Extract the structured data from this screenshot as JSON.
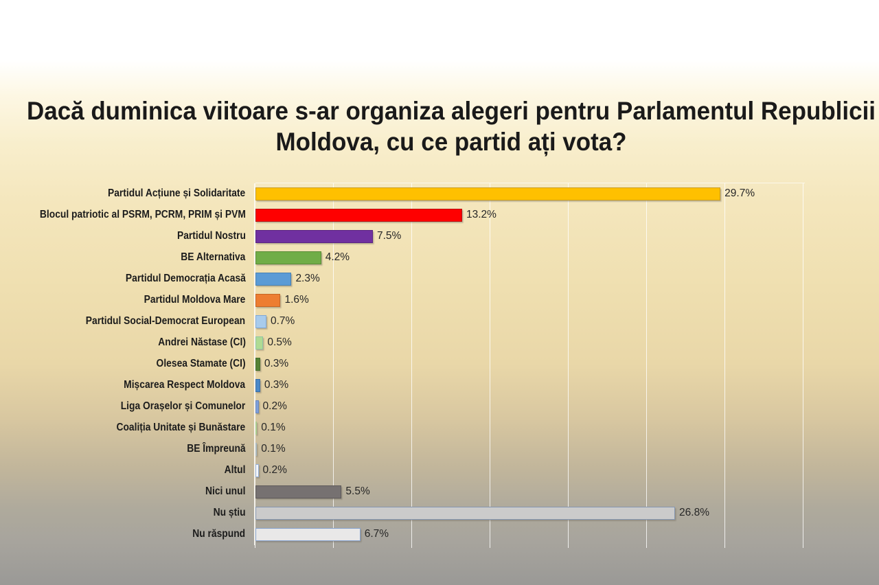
{
  "title": {
    "line1": "Dacă duminica viitoare s-ar organiza alegeri pentru Parlamentul Republicii",
    "line2": "Moldova, cu ce partid ați vota?",
    "full": "Dacă duminica viitoare s-ar organiza alegeri pentru Parlamentul Republicii Moldova, cu ce partid ați vota?"
  },
  "chart_data": {
    "type": "bar",
    "orientation": "horizontal",
    "title": "Dacă duminica viitoare s-ar organiza alegeri pentru Parlamentul Republicii Moldova, cu ce partid ați vota?",
    "xlabel": "",
    "ylabel": "",
    "xlim": [
      0,
      35
    ],
    "gridline_step_percent": 5,
    "grid": "vertical-white-gridlines",
    "legend": "none",
    "categories": [
      "Partidul Acțiune și Solidaritate",
      "Blocul patriotic al PSRM, PCRM, PRIM și PVM",
      "Partidul Nostru",
      "BE Alternativa",
      "Partidul Democrația Acasă",
      "Partidul Moldova Mare",
      "Partidul Social-Democrat European",
      "Andrei Năstase (CI)",
      "Olesea Stamate (CI)",
      "Mișcarea Respect Moldova",
      "Liga Orașelor și Comunelor",
      "Coaliția Unitate și Bunăstare",
      "BE Împreună",
      "Altul",
      "Nici unul",
      "Nu știu",
      "Nu răspund"
    ],
    "values": [
      29.7,
      13.2,
      7.5,
      4.2,
      2.3,
      1.6,
      0.7,
      0.5,
      0.3,
      0.3,
      0.2,
      0.1,
      0.1,
      0.2,
      5.5,
      26.8,
      6.7
    ],
    "value_labels": [
      "29.7%",
      "13.2%",
      "7.5%",
      "4.2%",
      "2.3%",
      "1.6%",
      "0.7%",
      "0.5%",
      "0.3%",
      "0.3%",
      "0.2%",
      "0.1%",
      "0.1%",
      "0.2%",
      "5.5%",
      "26.8%",
      "6.7%"
    ],
    "bar_colors": [
      {
        "fill": "#FFC000",
        "border": "#C89B1B"
      },
      {
        "fill": "#FE0000",
        "border": "#B81414"
      },
      {
        "fill": "#7030A0",
        "border": "#5A2482"
      },
      {
        "fill": "#70AD47",
        "border": "#5A8C37"
      },
      {
        "fill": "#5B9BD5",
        "border": "#4781B4"
      },
      {
        "fill": "#ED7D31",
        "border": "#C56523"
      },
      {
        "fill": "#A8CBEC",
        "border": "#7FA8D6"
      },
      {
        "fill": "#AFDB93",
        "border": "#8FC5A5"
      },
      {
        "fill": "#548235",
        "border": "#466E2B"
      },
      {
        "fill": "#4A89C8",
        "border": "#3B6FA5"
      },
      {
        "fill": "#7F9FD9",
        "border": "#6888BF"
      },
      {
        "fill": "#D9EABE",
        "border": "#A9CB8E"
      },
      {
        "fill": "#D6DDDE",
        "border": "#A9B8BE"
      },
      {
        "fill": "#F4F6F9",
        "border": "#94AFD7"
      },
      {
        "fill": "#767171",
        "border": "#5D5959"
      },
      {
        "fill": "#CBCBCB",
        "border": "#8496B0"
      },
      {
        "fill": "#E9E8E8",
        "border": "#84A1CC"
      }
    ],
    "background": {
      "top": "#FFFFFF",
      "middle_cream": "#F2E4BC",
      "bottom_gray": "#9B9A97"
    },
    "text_colors": {
      "title": "#1A1A1A",
      "category_labels": "#1C1C1C",
      "value_labels": "#262626"
    }
  }
}
